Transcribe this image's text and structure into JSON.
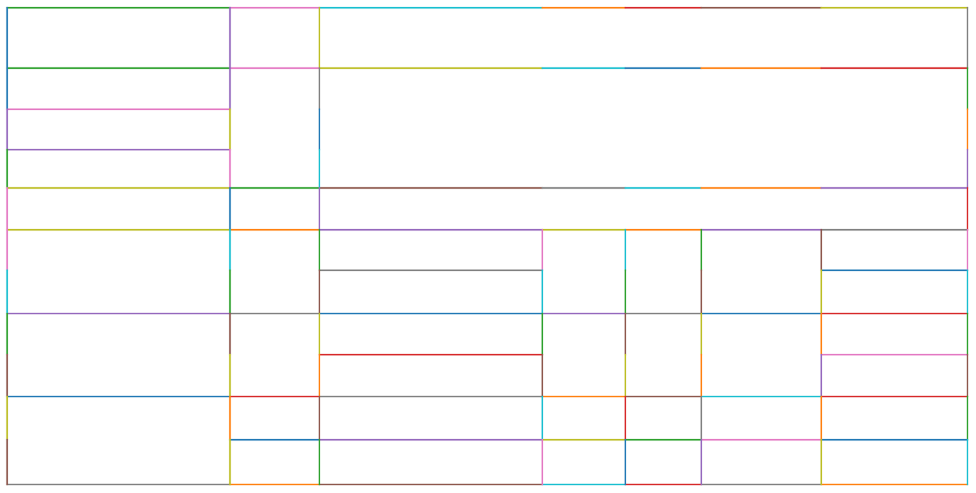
{
  "diagram": {
    "type": "rectangular partition with colored edge segments",
    "background": "#ffffff",
    "palette": {
      "B": "#1f77b4",
      "O": "#ff7f0e",
      "G": "#2ca02c",
      "R": "#d62728",
      "P": "#9467bd",
      "Br": "#8c564b",
      "Pk": "#e377c2",
      "Gy": "#7f7f7f",
      "Ol": "#bcbd22",
      "C": "#17becf"
    }
  }
}
